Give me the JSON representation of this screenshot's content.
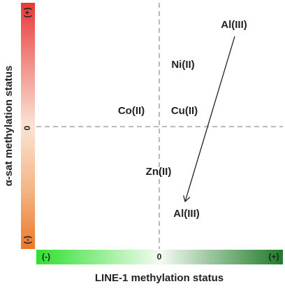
{
  "axes": {
    "y": {
      "label": "α-sat methylation status",
      "high": "(+)",
      "mid": "0",
      "low": "(-)"
    },
    "x": {
      "label": "LINE-1 methylation status",
      "low": "(-)",
      "mid": "0",
      "high": "(+)"
    }
  },
  "labels": [
    "Al(III)",
    "Ni(II)",
    "Co(II)",
    "Cu(II)",
    "Zn(II)",
    "Al(III)"
  ]
}
